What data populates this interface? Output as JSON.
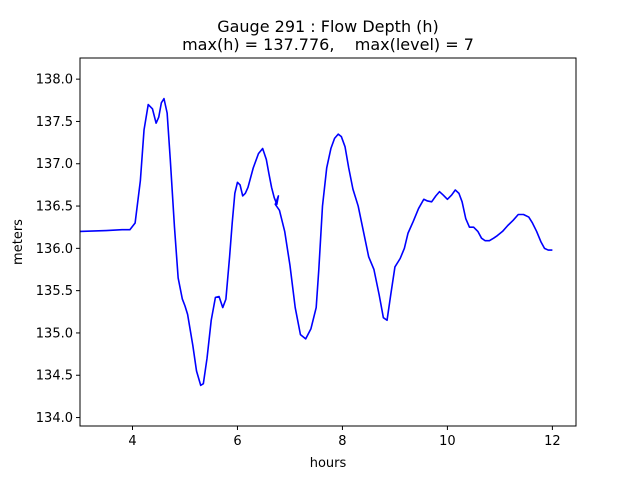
{
  "chart_data": {
    "type": "line",
    "title_line1": "Gauge 291 : Flow Depth (h)",
    "title_line2": "max(h) = 137.776,    max(level) = 7",
    "xlabel": "hours",
    "ylabel": "meters",
    "xlim": [
      3.0,
      12.45
    ],
    "ylim": [
      133.9,
      138.25
    ],
    "xticks": [
      4,
      6,
      8,
      10,
      12
    ],
    "xtick_labels": [
      "4",
      "6",
      "8",
      "10",
      "12"
    ],
    "yticks": [
      134.0,
      134.5,
      135.0,
      135.5,
      136.0,
      136.5,
      137.0,
      137.5,
      138.0
    ],
    "ytick_labels": [
      "134.0",
      "134.5",
      "135.0",
      "135.5",
      "136.0",
      "136.5",
      "137.0",
      "137.5",
      "138.0"
    ],
    "grid": false,
    "line_color": "#0000ff",
    "series": [
      {
        "x": [
          3.0,
          3.5,
          3.8,
          3.95,
          4.05,
          4.15,
          4.22,
          4.3,
          4.38,
          4.45,
          4.5,
          4.55,
          4.6,
          4.66,
          4.72,
          4.8,
          4.87,
          4.95,
          5.0,
          5.05,
          5.15,
          5.22,
          5.3,
          5.35,
          5.42,
          5.5,
          5.58,
          5.65,
          5.72,
          5.78,
          5.85,
          5.9,
          5.95,
          6.0,
          6.05,
          6.1,
          6.15,
          6.2,
          6.3,
          6.4,
          6.48,
          6.55,
          6.6,
          6.65,
          6.7,
          6.75,
          6.78,
          6.72,
          6.8,
          6.9,
          7.0,
          7.1,
          7.2,
          7.3,
          7.4,
          7.5,
          7.55,
          7.62,
          7.7,
          7.78,
          7.85,
          7.92,
          7.98,
          8.05,
          8.12,
          8.2,
          8.3,
          8.4,
          8.5,
          8.6,
          8.7,
          8.78,
          8.85,
          8.92,
          9.0,
          9.1,
          9.18,
          9.25,
          9.35,
          9.45,
          9.55,
          9.62,
          9.7,
          9.78,
          9.85,
          9.92,
          10.0,
          10.08,
          10.15,
          10.22,
          10.28,
          10.35,
          10.42,
          10.5,
          10.58,
          10.65,
          10.72,
          10.8,
          10.88,
          10.95,
          11.05,
          11.15,
          11.25,
          11.35,
          11.45,
          11.55,
          11.62,
          11.7,
          11.78,
          11.85,
          11.92,
          12.0
        ],
        "y": [
          136.2,
          136.21,
          136.22,
          136.22,
          136.3,
          136.8,
          137.4,
          137.7,
          137.65,
          137.48,
          137.55,
          137.72,
          137.77,
          137.6,
          137.05,
          136.25,
          135.65,
          135.4,
          135.32,
          135.22,
          134.85,
          134.55,
          134.38,
          134.4,
          134.7,
          135.15,
          135.42,
          135.43,
          135.3,
          135.4,
          135.9,
          136.3,
          136.65,
          136.78,
          136.75,
          136.62,
          136.65,
          136.72,
          136.95,
          137.12,
          137.18,
          137.05,
          136.88,
          136.72,
          136.6,
          136.52,
          136.62,
          136.52,
          136.45,
          136.2,
          135.8,
          135.3,
          134.98,
          134.93,
          135.05,
          135.3,
          135.75,
          136.5,
          136.95,
          137.18,
          137.3,
          137.35,
          137.32,
          137.2,
          136.95,
          136.7,
          136.5,
          136.2,
          135.9,
          135.75,
          135.45,
          135.18,
          135.15,
          135.45,
          135.78,
          135.88,
          136.0,
          136.18,
          136.32,
          136.47,
          136.58,
          136.56,
          136.55,
          136.62,
          136.67,
          136.63,
          136.58,
          136.63,
          136.69,
          136.65,
          136.55,
          136.35,
          136.25,
          136.25,
          136.2,
          136.12,
          136.09,
          136.09,
          136.12,
          136.15,
          136.2,
          136.27,
          136.33,
          136.4,
          136.4,
          136.37,
          136.3,
          136.2,
          136.08,
          136.0,
          135.98,
          135.98
        ]
      }
    ]
  }
}
